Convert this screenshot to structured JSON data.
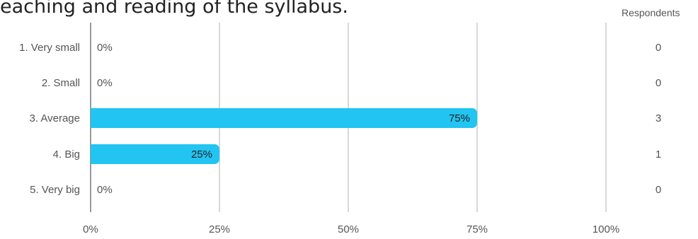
{
  "title_fragment": "eaching and reading of the syllabus.",
  "respondents_header": "Respondents",
  "colors": {
    "bar": "#22c4f2",
    "grid": "#cccccc",
    "axis": "#999999"
  },
  "chart_data": {
    "type": "bar",
    "orientation": "horizontal",
    "title": "",
    "xlabel": "",
    "ylabel": "",
    "xlim": [
      0,
      100
    ],
    "x_ticks": [
      "0%",
      "25%",
      "50%",
      "75%",
      "100%"
    ],
    "x_tick_values": [
      0,
      25,
      50,
      75,
      100
    ],
    "categories": [
      "1. Very small",
      "2. Small",
      "3. Average",
      "4. Big",
      "5. Very big"
    ],
    "values": [
      0,
      0,
      75,
      25,
      0
    ],
    "value_labels": [
      "0%",
      "0%",
      "75%",
      "25%",
      "0%"
    ],
    "respondents": [
      "0",
      "0",
      "3",
      "1",
      "0"
    ],
    "grid": true,
    "legend": "none"
  }
}
